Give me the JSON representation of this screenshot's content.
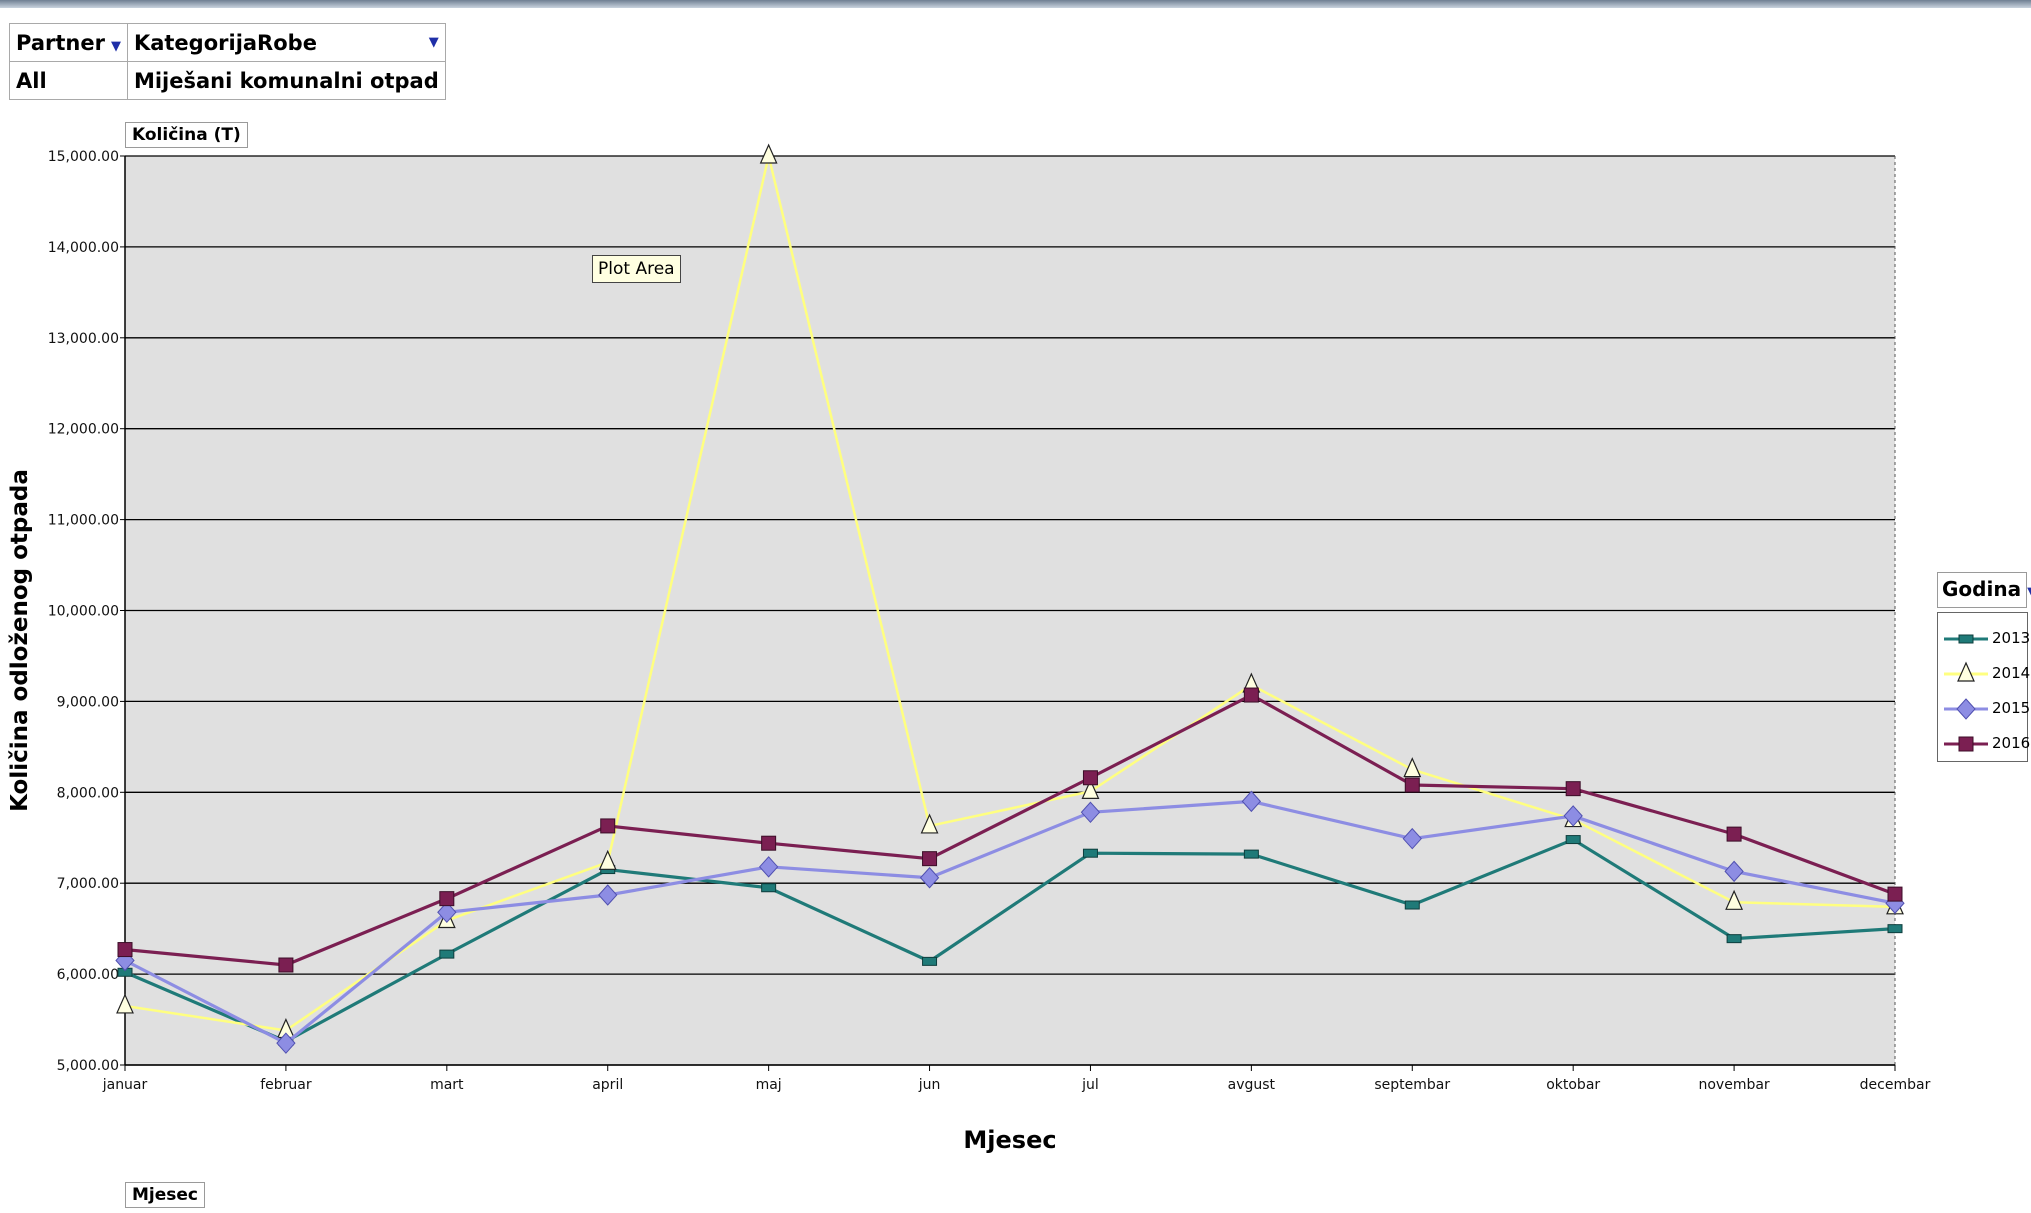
{
  "filters": {
    "partner_label": "Partner",
    "partner_value": "All",
    "category_label": "KategorijaRobe",
    "category_value": "Miješani komunalni otpad"
  },
  "data_field_button": "Količina (T)",
  "row_field_button": "Mjesec",
  "tooltip": "Plot Area",
  "legend_title": "Godina",
  "colors": {
    "2013": "#1f7a78",
    "2014": "#ffff80",
    "2015": "#8d8de3",
    "2016": "#7b1f52",
    "plot_bg": "#e0e0e0"
  },
  "chart_data": {
    "type": "line",
    "title": "",
    "xlabel": "Mjesec",
    "ylabel": "Količina odloženog otpada",
    "ylim": [
      5000,
      15000
    ],
    "yticks": [
      "5,000.00",
      "6,000.00",
      "7,000.00",
      "8,000.00",
      "9,000.00",
      "10,000.00",
      "11,000.00",
      "12,000.00",
      "13,000.00",
      "14,000.00",
      "15,000.00"
    ],
    "categories": [
      "januar",
      "februar",
      "mart",
      "april",
      "maj",
      "jun",
      "jul",
      "avgust",
      "septembar",
      "oktobar",
      "novembar",
      "decembar"
    ],
    "grid": true,
    "legend": "right",
    "series": [
      {
        "name": "2013",
        "marker": "square-small",
        "values": [
          6020,
          5260,
          6220,
          7150,
          6950,
          6140,
          7330,
          7320,
          6760,
          7480,
          6390,
          6500
        ]
      },
      {
        "name": "2014",
        "marker": "triangle",
        "values": [
          5650,
          5380,
          6590,
          7230,
          15000,
          7630,
          8010,
          9180,
          8250,
          7700,
          6790,
          6740
        ]
      },
      {
        "name": "2015",
        "marker": "diamond",
        "values": [
          6150,
          5240,
          6680,
          6870,
          7180,
          7060,
          7780,
          7900,
          7490,
          7740,
          7130,
          6780
        ]
      },
      {
        "name": "2016",
        "marker": "square",
        "values": [
          6270,
          6100,
          6830,
          7630,
          7440,
          7270,
          8160,
          9070,
          8080,
          8040,
          7540,
          6880
        ]
      }
    ]
  }
}
